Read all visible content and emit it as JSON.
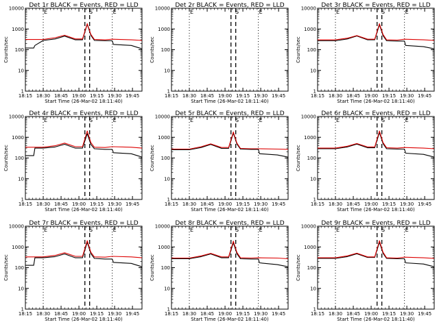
{
  "chart_data": {
    "type": "line",
    "common": {
      "x_ticks": [
        "18:15",
        "18:30",
        "18:45",
        "19:00",
        "19:15",
        "19:30",
        "19:45"
      ],
      "y_ticks": [
        "1",
        "10",
        "100",
        "1000",
        "10000"
      ],
      "ylabel": "Counts/sec",
      "xlabel": "Start Time (26-Mar-02 18:11:40)",
      "ylim": [
        1,
        10000
      ],
      "y_scale": "log",
      "xlim_min": [
        3.5,
        101.5
      ],
      "vertical_dotted_min": [
        18.5,
        76.5
      ],
      "vertical_dashed_min": [
        53.5,
        57.5
      ],
      "markers": [
        {
          "min": 18.5,
          "label": "E"
        },
        {
          "min": 56.5,
          "label": "S"
        },
        {
          "min": 76.5,
          "label": "E"
        }
      ],
      "series_colors": {
        "events": "#000000",
        "lld": "#dd0000"
      }
    },
    "panels": [
      {
        "title": "Det 1r BLACK = Events, RED = LLD",
        "series": [
          {
            "role": "events",
            "points": [
              [
                3.5,
                120
              ],
              [
                10.5,
                120
              ],
              [
                11.5,
                160
              ],
              [
                18.5,
                280
              ],
              [
                28.5,
                330
              ],
              [
                36.5,
                450
              ],
              [
                45.5,
                300
              ],
              [
                51.5,
                300
              ],
              [
                55.5,
                1700
              ],
              [
                58.5,
                500
              ],
              [
                61.5,
                280
              ],
              [
                70.5,
                270
              ],
              [
                76.5,
                270
              ],
              [
                77.5,
                180
              ],
              [
                92.5,
                160
              ],
              [
                101.5,
                110
              ]
            ]
          },
          {
            "role": "lld",
            "points": [
              [
                3.5,
                310
              ],
              [
                18.5,
                310
              ],
              [
                28.5,
                380
              ],
              [
                36.5,
                500
              ],
              [
                45.5,
                330
              ],
              [
                51.5,
                330
              ],
              [
                55.5,
                1800
              ],
              [
                58.5,
                550
              ],
              [
                61.5,
                310
              ],
              [
                70.5,
                300
              ],
              [
                76.5,
                320
              ],
              [
                92.5,
                300
              ],
              [
                101.5,
                280
              ]
            ]
          }
        ]
      },
      {
        "title": "Det 2r BLACK = Events, RED = LLD",
        "series": []
      },
      {
        "title": "Det 3r BLACK = Events, RED = LLD",
        "series": [
          {
            "role": "events",
            "points": [
              [
                3.5,
                270
              ],
              [
                18.5,
                270
              ],
              [
                28.5,
                330
              ],
              [
                36.5,
                460
              ],
              [
                45.5,
                300
              ],
              [
                51.5,
                300
              ],
              [
                55.5,
                1600
              ],
              [
                58.5,
                480
              ],
              [
                61.5,
                270
              ],
              [
                70.5,
                260
              ],
              [
                76.5,
                260
              ],
              [
                77.5,
                160
              ],
              [
                92.5,
                140
              ],
              [
                101.5,
                110
              ]
            ]
          },
          {
            "role": "lld",
            "points": [
              [
                3.5,
                300
              ],
              [
                18.5,
                300
              ],
              [
                28.5,
                360
              ],
              [
                36.5,
                480
              ],
              [
                45.5,
                320
              ],
              [
                51.5,
                320
              ],
              [
                55.5,
                1800
              ],
              [
                58.5,
                540
              ],
              [
                61.5,
                300
              ],
              [
                70.5,
                290
              ],
              [
                76.5,
                320
              ],
              [
                92.5,
                300
              ],
              [
                101.5,
                280
              ]
            ]
          }
        ]
      },
      {
        "title": "Det 4r BLACK = Events, RED = LLD",
        "series": [
          {
            "role": "events",
            "points": [
              [
                3.5,
                130
              ],
              [
                10.5,
                130
              ],
              [
                11.5,
                300
              ],
              [
                18.5,
                300
              ],
              [
                28.5,
                340
              ],
              [
                36.5,
                460
              ],
              [
                45.5,
                300
              ],
              [
                51.5,
                300
              ],
              [
                55.5,
                1500
              ],
              [
                58.5,
                450
              ],
              [
                61.5,
                280
              ],
              [
                70.5,
                260
              ],
              [
                76.5,
                260
              ],
              [
                77.5,
                180
              ],
              [
                92.5,
                160
              ],
              [
                101.5,
                110
              ]
            ]
          },
          {
            "role": "lld",
            "points": [
              [
                3.5,
                330
              ],
              [
                18.5,
                330
              ],
              [
                28.5,
                390
              ],
              [
                36.5,
                520
              ],
              [
                45.5,
                350
              ],
              [
                51.5,
                350
              ],
              [
                55.5,
                2000
              ],
              [
                58.5,
                560
              ],
              [
                61.5,
                330
              ],
              [
                70.5,
                320
              ],
              [
                76.5,
                350
              ],
              [
                92.5,
                330
              ],
              [
                101.5,
                300
              ]
            ]
          }
        ]
      },
      {
        "title": "Det 5r BLACK = Events, RED = LLD",
        "series": [
          {
            "role": "events",
            "points": [
              [
                3.5,
                250
              ],
              [
                18.5,
                250
              ],
              [
                28.5,
                320
              ],
              [
                36.5,
                450
              ],
              [
                45.5,
                290
              ],
              [
                51.5,
                290
              ],
              [
                55.5,
                1600
              ],
              [
                58.5,
                470
              ],
              [
                61.5,
                270
              ],
              [
                70.5,
                260
              ],
              [
                76.5,
                260
              ],
              [
                77.5,
                160
              ],
              [
                92.5,
                140
              ],
              [
                101.5,
                110
              ]
            ]
          },
          {
            "role": "lld",
            "points": [
              [
                3.5,
                270
              ],
              [
                18.5,
                270
              ],
              [
                28.5,
                350
              ],
              [
                36.5,
                480
              ],
              [
                45.5,
                320
              ],
              [
                51.5,
                320
              ],
              [
                55.5,
                1800
              ],
              [
                58.5,
                520
              ],
              [
                61.5,
                290
              ],
              [
                70.5,
                280
              ],
              [
                76.5,
                280
              ],
              [
                92.5,
                270
              ],
              [
                101.5,
                260
              ]
            ]
          }
        ]
      },
      {
        "title": "Det 6r BLACK = Events, RED = LLD",
        "series": [
          {
            "role": "events",
            "points": [
              [
                3.5,
                280
              ],
              [
                18.5,
                280
              ],
              [
                28.5,
                340
              ],
              [
                36.5,
                470
              ],
              [
                45.5,
                310
              ],
              [
                51.5,
                310
              ],
              [
                55.5,
                1700
              ],
              [
                58.5,
                490
              ],
              [
                61.5,
                280
              ],
              [
                70.5,
                270
              ],
              [
                76.5,
                270
              ],
              [
                77.5,
                170
              ],
              [
                92.5,
                150
              ],
              [
                101.5,
                110
              ]
            ]
          },
          {
            "role": "lld",
            "points": [
              [
                3.5,
                300
              ],
              [
                18.5,
                300
              ],
              [
                28.5,
                370
              ],
              [
                36.5,
                500
              ],
              [
                45.5,
                340
              ],
              [
                51.5,
                340
              ],
              [
                55.5,
                2000
              ],
              [
                58.5,
                560
              ],
              [
                61.5,
                310
              ],
              [
                70.5,
                300
              ],
              [
                76.5,
                320
              ],
              [
                92.5,
                300
              ],
              [
                101.5,
                280
              ]
            ]
          }
        ]
      },
      {
        "title": "Det 7r BLACK = Events, RED = LLD",
        "series": [
          {
            "role": "events",
            "points": [
              [
                3.5,
                130
              ],
              [
                10.5,
                130
              ],
              [
                11.5,
                300
              ],
              [
                18.5,
                300
              ],
              [
                28.5,
                340
              ],
              [
                36.5,
                460
              ],
              [
                45.5,
                300
              ],
              [
                51.5,
                300
              ],
              [
                55.5,
                1700
              ],
              [
                58.5,
                480
              ],
              [
                61.5,
                280
              ],
              [
                70.5,
                260
              ],
              [
                76.5,
                260
              ],
              [
                77.5,
                180
              ],
              [
                92.5,
                160
              ],
              [
                101.5,
                110
              ]
            ]
          },
          {
            "role": "lld",
            "points": [
              [
                3.5,
                330
              ],
              [
                18.5,
                330
              ],
              [
                28.5,
                390
              ],
              [
                36.5,
                520
              ],
              [
                45.5,
                350
              ],
              [
                51.5,
                350
              ],
              [
                55.5,
                2000
              ],
              [
                58.5,
                560
              ],
              [
                61.5,
                330
              ],
              [
                70.5,
                320
              ],
              [
                76.5,
                350
              ],
              [
                92.5,
                330
              ],
              [
                101.5,
                300
              ]
            ]
          }
        ]
      },
      {
        "title": "Det 8r BLACK = Events, RED = LLD",
        "series": [
          {
            "role": "events",
            "points": [
              [
                3.5,
                270
              ],
              [
                18.5,
                270
              ],
              [
                28.5,
                340
              ],
              [
                36.5,
                460
              ],
              [
                45.5,
                300
              ],
              [
                51.5,
                300
              ],
              [
                55.5,
                1600
              ],
              [
                58.5,
                470
              ],
              [
                61.5,
                270
              ],
              [
                70.5,
                260
              ],
              [
                76.5,
                260
              ],
              [
                77.5,
                170
              ],
              [
                92.5,
                140
              ],
              [
                101.5,
                110
              ]
            ]
          },
          {
            "role": "lld",
            "points": [
              [
                3.5,
                290
              ],
              [
                18.5,
                290
              ],
              [
                28.5,
                370
              ],
              [
                36.5,
                490
              ],
              [
                45.5,
                330
              ],
              [
                51.5,
                330
              ],
              [
                55.5,
                1900
              ],
              [
                58.5,
                540
              ],
              [
                61.5,
                300
              ],
              [
                70.5,
                290
              ],
              [
                76.5,
                300
              ],
              [
                92.5,
                290
              ],
              [
                101.5,
                270
              ]
            ]
          }
        ]
      },
      {
        "title": "Det 9r BLACK = Events, RED = LLD",
        "series": [
          {
            "role": "events",
            "points": [
              [
                3.5,
                280
              ],
              [
                18.5,
                280
              ],
              [
                28.5,
                340
              ],
              [
                36.5,
                470
              ],
              [
                45.5,
                310
              ],
              [
                51.5,
                310
              ],
              [
                55.5,
                1700
              ],
              [
                58.5,
                490
              ],
              [
                61.5,
                280
              ],
              [
                70.5,
                270
              ],
              [
                76.5,
                270
              ],
              [
                77.5,
                170
              ],
              [
                92.5,
                150
              ],
              [
                101.5,
                110
              ]
            ]
          },
          {
            "role": "lld",
            "points": [
              [
                3.5,
                300
              ],
              [
                18.5,
                300
              ],
              [
                28.5,
                370
              ],
              [
                36.5,
                500
              ],
              [
                45.5,
                330
              ],
              [
                51.5,
                330
              ],
              [
                55.5,
                2000
              ],
              [
                58.5,
                560
              ],
              [
                61.5,
                300
              ],
              [
                70.5,
                290
              ],
              [
                76.5,
                320
              ],
              [
                92.5,
                300
              ],
              [
                101.5,
                280
              ]
            ]
          }
        ]
      }
    ]
  }
}
